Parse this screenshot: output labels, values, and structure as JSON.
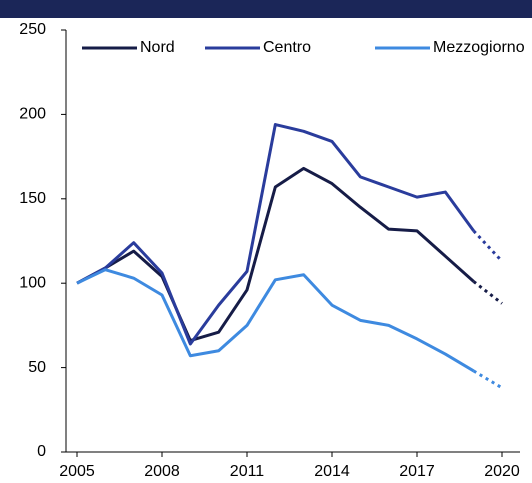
{
  "chart_data": {
    "type": "line",
    "x": [
      2005,
      2006,
      2007,
      2008,
      2009,
      2010,
      2011,
      2012,
      2013,
      2014,
      2015,
      2016,
      2017,
      2018,
      2019,
      2020
    ],
    "series": [
      {
        "name": "Nord",
        "color": "#161c47",
        "values": [
          100,
          109,
          119,
          104,
          66,
          71,
          96,
          157,
          168,
          159,
          145,
          132,
          131,
          116,
          101,
          88
        ]
      },
      {
        "name": "Centro",
        "color": "#2a3c9c",
        "values": [
          100,
          109,
          124,
          106,
          64,
          87,
          107,
          194,
          190,
          184,
          163,
          157,
          151,
          154,
          131,
          113
        ]
      },
      {
        "name": "Mezzogiorno",
        "color": "#3e8ae0",
        "values": [
          100,
          108,
          103,
          93,
          57,
          60,
          75,
          102,
          105,
          87,
          78,
          75,
          67,
          58,
          48,
          38
        ]
      }
    ],
    "dotted_from": 2019,
    "xlim": [
      2005,
      2020
    ],
    "xticks": [
      2005,
      2008,
      2011,
      2014,
      2017,
      2020
    ],
    "ylim": [
      0,
      250
    ],
    "yticks": [
      0,
      50,
      100,
      150,
      200,
      250
    ],
    "legend": "top"
  }
}
